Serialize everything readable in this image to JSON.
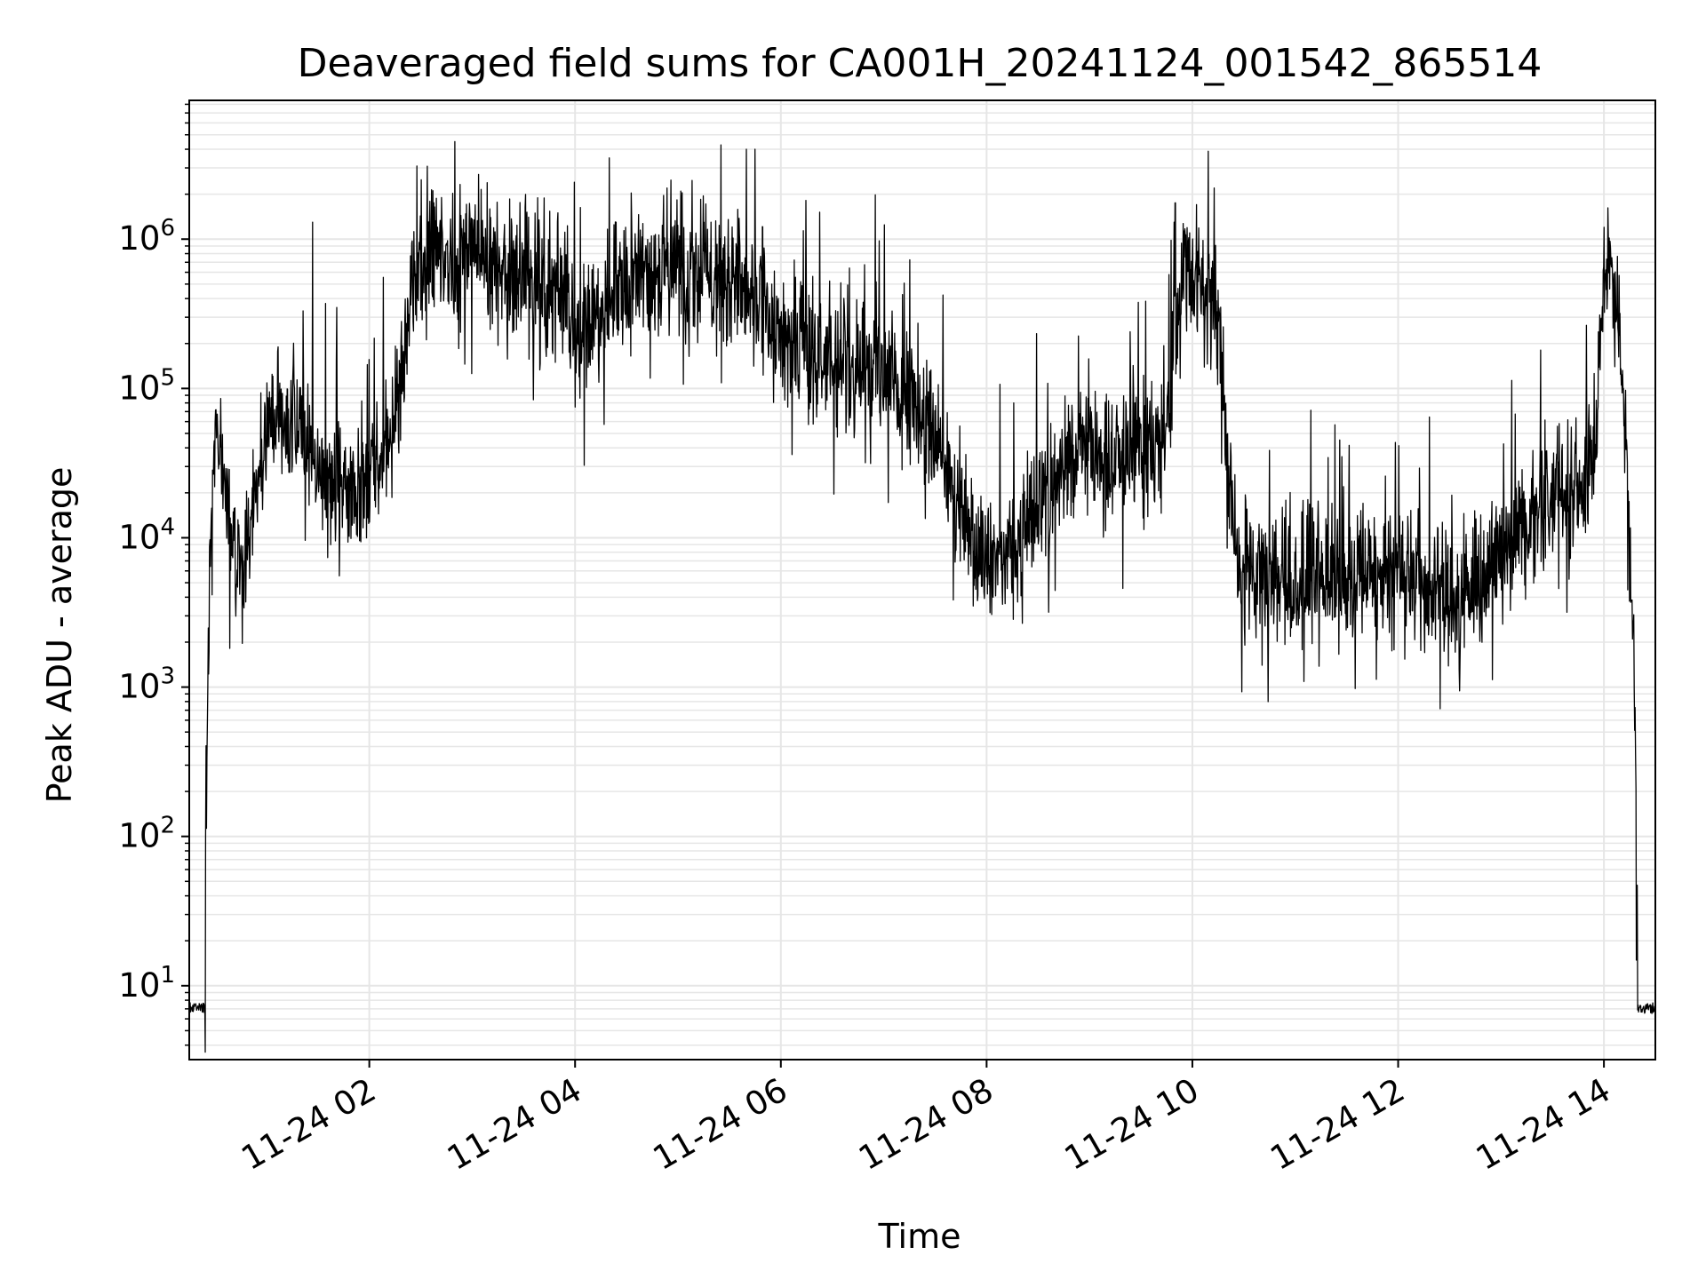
{
  "chart_data": {
    "type": "line",
    "title": "Deaveraged field sums for CA001H_20241124_001542_865514",
    "xlabel": "Time",
    "ylabel": "Peak ADU - average",
    "yscale": "log",
    "grid": true,
    "line_color": "#000000",
    "grid_color": "#e6e6e6",
    "xlim": [
      "2024-11-24 00:15",
      "2024-11-24 14:30"
    ],
    "ylim": [
      3.2,
      8500000
    ],
    "x_ticks": [
      {
        "value": "2024-11-24 02:00",
        "label": "11-24 02"
      },
      {
        "value": "2024-11-24 04:00",
        "label": "11-24 04"
      },
      {
        "value": "2024-11-24 06:00",
        "label": "11-24 06"
      },
      {
        "value": "2024-11-24 08:00",
        "label": "11-24 08"
      },
      {
        "value": "2024-11-24 10:00",
        "label": "11-24 10"
      },
      {
        "value": "2024-11-24 12:00",
        "label": "11-24 12"
      },
      {
        "value": "2024-11-24 14:00",
        "label": "11-24 14"
      }
    ],
    "y_ticks": [
      {
        "value": 10,
        "base": "10",
        "exp": "1"
      },
      {
        "value": 100,
        "base": "10",
        "exp": "2"
      },
      {
        "value": 1000,
        "base": "10",
        "exp": "3"
      },
      {
        "value": 10000,
        "base": "10",
        "exp": "4"
      },
      {
        "value": 100000,
        "base": "10",
        "exp": "5"
      },
      {
        "value": 1000000,
        "base": "10",
        "exp": "6"
      }
    ],
    "series": [
      {
        "x": [
          "2024-11-24 00:15",
          "2024-11-24 00:23",
          "2024-11-24 00:24",
          "2024-11-24 00:25",
          "2024-11-24 00:28",
          "2024-11-24 00:31",
          "2024-11-24 00:35",
          "2024-11-24 00:40",
          "2024-11-24 00:45",
          "2024-11-24 00:50",
          "2024-11-24 00:55",
          "2024-11-24 01:00",
          "2024-11-24 01:10",
          "2024-11-24 01:20",
          "2024-11-24 01:30",
          "2024-11-24 01:40",
          "2024-11-24 01:50",
          "2024-11-24 02:00",
          "2024-11-24 02:10",
          "2024-11-24 02:20",
          "2024-11-24 02:25",
          "2024-11-24 02:30",
          "2024-11-24 02:40",
          "2024-11-24 02:50",
          "2024-11-24 03:00",
          "2024-11-24 03:15",
          "2024-11-24 03:30",
          "2024-11-24 03:45",
          "2024-11-24 03:55",
          "2024-11-24 04:00",
          "2024-11-24 04:15",
          "2024-11-24 04:30",
          "2024-11-24 04:45",
          "2024-11-24 05:00",
          "2024-11-24 05:15",
          "2024-11-24 05:30",
          "2024-11-24 05:45",
          "2024-11-24 06:00",
          "2024-11-24 06:15",
          "2024-11-24 06:30",
          "2024-11-24 06:45",
          "2024-11-24 07:00",
          "2024-11-24 07:15",
          "2024-11-24 07:30",
          "2024-11-24 07:45",
          "2024-11-24 08:00",
          "2024-11-24 08:15",
          "2024-11-24 08:30",
          "2024-11-24 08:45",
          "2024-11-24 09:00",
          "2024-11-24 09:15",
          "2024-11-24 09:30",
          "2024-11-24 09:45",
          "2024-11-24 09:55",
          "2024-11-24 10:05",
          "2024-11-24 10:15",
          "2024-11-24 10:25",
          "2024-11-24 10:35",
          "2024-11-24 10:50",
          "2024-11-24 11:10",
          "2024-11-24 11:30",
          "2024-11-24 11:50",
          "2024-11-24 12:10",
          "2024-11-24 12:30",
          "2024-11-24 12:45",
          "2024-11-24 13:00",
          "2024-11-24 13:15",
          "2024-11-24 13:30",
          "2024-11-24 13:45",
          "2024-11-24 13:55",
          "2024-11-24 14:00",
          "2024-11-24 14:05",
          "2024-11-24 14:10",
          "2024-11-24 14:15",
          "2024-11-24 14:18",
          "2024-11-24 14:20",
          "2024-11-24 14:21",
          "2024-11-24 14:30"
        ],
        "y": [
          7,
          7,
          7,
          300,
          20000,
          60000,
          20000,
          8000,
          6000,
          15000,
          25000,
          60000,
          70000,
          50000,
          30000,
          25000,
          20000,
          25000,
          40000,
          120000,
          500000,
          700000,
          800000,
          700000,
          800000,
          700000,
          600000,
          500000,
          500000,
          200000,
          300000,
          500000,
          600000,
          700000,
          600000,
          500000,
          400000,
          200000,
          200000,
          150000,
          150000,
          150000,
          80000,
          40000,
          15000,
          8000,
          8000,
          20000,
          30000,
          40000,
          30000,
          40000,
          50000,
          700000,
          500000,
          300000,
          8000,
          5000,
          5000,
          6000,
          5000,
          6000,
          5000,
          3500,
          5000,
          8000,
          12000,
          20000,
          20000,
          40000,
          700000,
          600000,
          200000,
          10000,
          800,
          7,
          7,
          7
        ],
        "spikes": [
          {
            "x": "2024-11-24 01:27",
            "y": 1300000
          },
          {
            "x": "2024-11-24 02:50",
            "y": 4500000
          },
          {
            "x": "2024-11-24 03:50",
            "y": 1500000
          },
          {
            "x": "2024-11-24 04:20",
            "y": 3500000
          },
          {
            "x": "2024-11-24 05:40",
            "y": 4000000
          },
          {
            "x": "2024-11-24 05:45",
            "y": 4000000
          },
          {
            "x": "2024-11-24 09:50",
            "y": 1750000
          },
          {
            "x": "2024-11-24 14:00",
            "y": 1200000
          }
        ]
      }
    ]
  }
}
